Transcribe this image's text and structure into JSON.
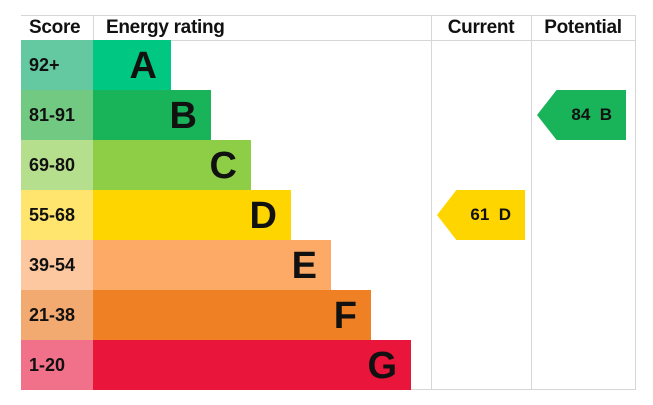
{
  "chart_data": {
    "type": "table",
    "headers": {
      "score": "Score",
      "rating": "Energy rating",
      "current": "Current",
      "potential": "Potential"
    },
    "bands": [
      {
        "score": "92+",
        "letter": "A",
        "color": "#00c781",
        "score_color": "#64c8a0"
      },
      {
        "score": "81-91",
        "letter": "B",
        "color": "#19b459",
        "score_color": "#72c981"
      },
      {
        "score": "69-80",
        "letter": "C",
        "color": "#8dce46",
        "score_color": "#b6df8d"
      },
      {
        "score": "55-68",
        "letter": "D",
        "color": "#ffd500",
        "score_color": "#ffe46d"
      },
      {
        "score": "39-54",
        "letter": "E",
        "color": "#fcaa65",
        "score_color": "#fdc79f"
      },
      {
        "score": "21-38",
        "letter": "F",
        "color": "#ef8023",
        "score_color": "#f3aa70"
      },
      {
        "score": "1-20",
        "letter": "G",
        "color": "#e9153b",
        "score_color": "#f1718a"
      }
    ],
    "current": {
      "value": 61,
      "letter": "D",
      "label": "61  D",
      "color": "#ffd500"
    },
    "potential": {
      "value": 84,
      "letter": "B",
      "label": "84  B",
      "color": "#19b459"
    }
  }
}
